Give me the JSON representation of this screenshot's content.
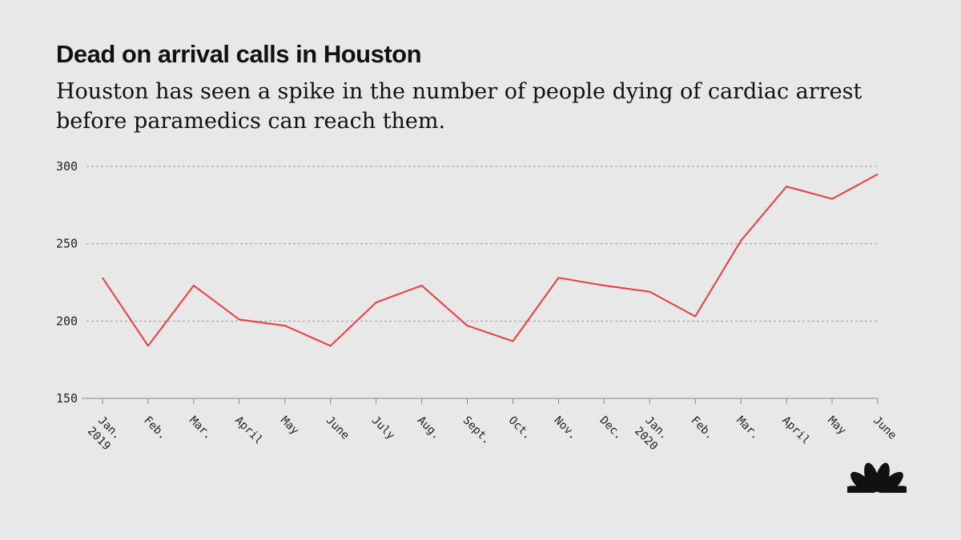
{
  "header": {
    "title": "Dead on arrival calls in Houston",
    "subtitle": "Houston has seen a spike in the number of people dying of cardiac arrest before paramedics can reach them."
  },
  "logo": {
    "icon": "peacock-logo-icon",
    "colors": [
      "#111111"
    ]
  },
  "chart_data": {
    "type": "line",
    "title": "Dead on arrival calls in Houston",
    "subtitle": "Houston has seen a spike in the number of people dying of cardiac arrest before paramedics can reach them.",
    "categories": [
      [
        "Jan.",
        "2019"
      ],
      [
        "Feb."
      ],
      [
        "Mar."
      ],
      [
        "April"
      ],
      [
        "May"
      ],
      [
        "June"
      ],
      [
        "July"
      ],
      [
        "Aug."
      ],
      [
        "Sept."
      ],
      [
        "Oct."
      ],
      [
        "Nov."
      ],
      [
        "Dec."
      ],
      [
        "Jan.",
        "2020"
      ],
      [
        "Feb."
      ],
      [
        "Mar."
      ],
      [
        "April"
      ],
      [
        "May"
      ],
      [
        "June"
      ]
    ],
    "series": [
      {
        "values": [
          228,
          184,
          223,
          201,
          197,
          184,
          212,
          223,
          197,
          187,
          228,
          223,
          219,
          203,
          252,
          287,
          279,
          295
        ],
        "color": "#ee3b3b"
      }
    ],
    "yticks": [
      150,
      200,
      250,
      300
    ],
    "ylim": [
      150,
      300
    ],
    "grid": true,
    "xlabel": "",
    "ylabel": ""
  }
}
